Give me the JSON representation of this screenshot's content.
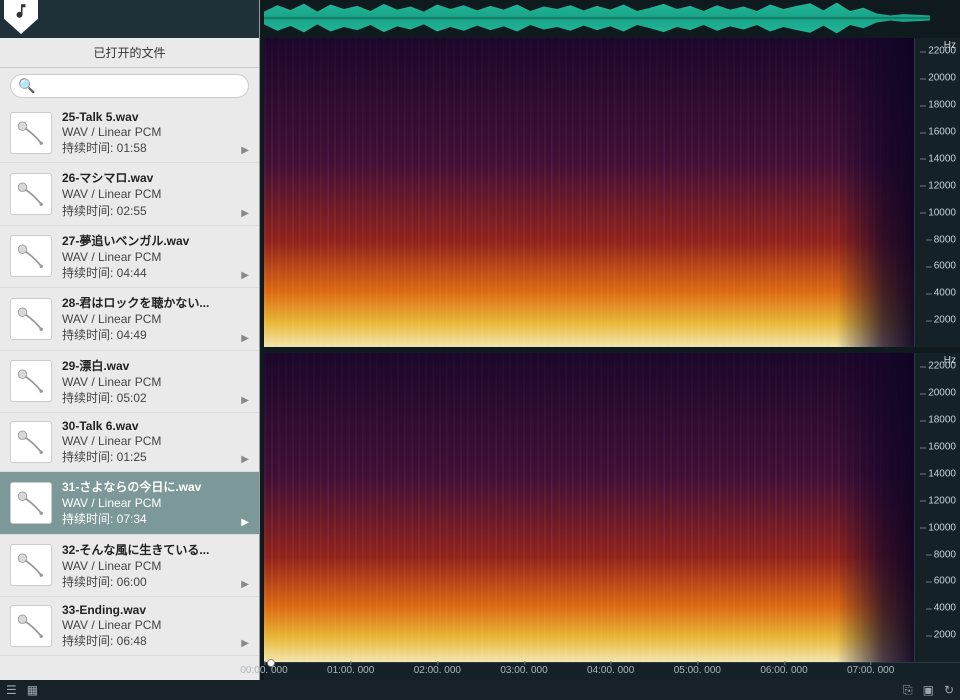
{
  "sidebar": {
    "title": "已打开的文件",
    "search_placeholder": "",
    "duration_label": "持续时间: ",
    "files": [
      {
        "name": "25-Talk 5.wav",
        "format": "WAV / Linear PCM",
        "duration": "01:58",
        "selected": false
      },
      {
        "name": "26-マシマロ.wav",
        "format": "WAV / Linear PCM",
        "duration": "02:55",
        "selected": false
      },
      {
        "name": "27-夢追いベンガル.wav",
        "format": "WAV / Linear PCM",
        "duration": "04:44",
        "selected": false
      },
      {
        "name": "28-君はロックを聴かない...",
        "format": "WAV / Linear PCM",
        "duration": "04:49",
        "selected": false
      },
      {
        "name": "29-漂白.wav",
        "format": "WAV / Linear PCM",
        "duration": "05:02",
        "selected": false
      },
      {
        "name": "30-Talk 6.wav",
        "format": "WAV / Linear PCM",
        "duration": "01:25",
        "selected": false
      },
      {
        "name": "31-さよならの今日に.wav",
        "format": "WAV / Linear PCM",
        "duration": "07:34",
        "selected": true
      },
      {
        "name": "32-そんな風に生きている...",
        "format": "WAV / Linear PCM",
        "duration": "06:00",
        "selected": false
      },
      {
        "name": "33-Ending.wav",
        "format": "WAV / Linear PCM",
        "duration": "06:48",
        "selected": false
      }
    ]
  },
  "spectrogram": {
    "colors": {
      "bg": "#0f1a1e",
      "low": "#1e073a",
      "mid_low": "#5a0a46",
      "mid": "#c8281e",
      "mid_high": "#ff7814",
      "high": "#ffc83c",
      "peak": "#fff0b4",
      "waveform": "#20b89a",
      "axis_text": "#c8d4d8"
    },
    "hz_label": "Hz",
    "freq_ticks": [
      22000,
      20000,
      18000,
      16000,
      14000,
      12000,
      10000,
      8000,
      6000,
      4000,
      2000
    ],
    "freq_max": 23000,
    "time_ticks": [
      "00:00. 000",
      "01:00. 000",
      "02:00. 000",
      "03:00. 000",
      "04:00. 000",
      "05:00. 000",
      "06:00. 000",
      "07:00. 000"
    ],
    "time_max_seconds": 450
  }
}
